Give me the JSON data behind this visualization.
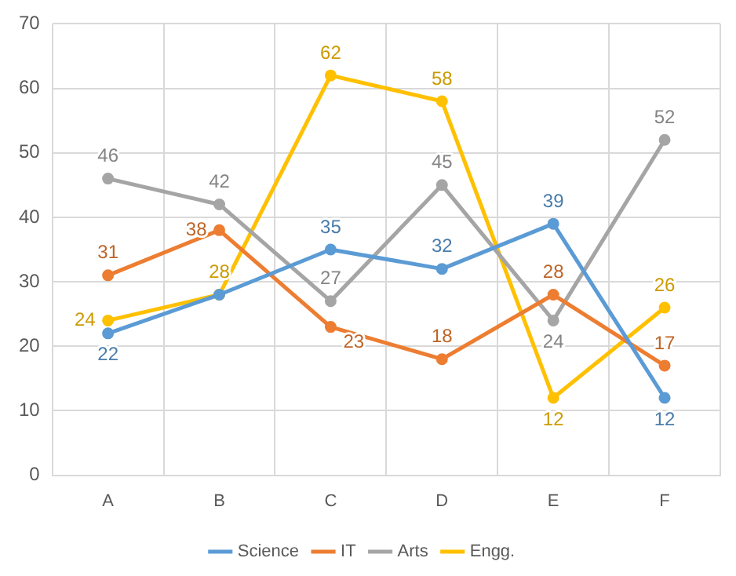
{
  "chart_data": {
    "type": "line",
    "categories": [
      "A",
      "B",
      "C",
      "D",
      "E",
      "F"
    ],
    "series": [
      {
        "name": "Science",
        "color": "#5b9bd5",
        "values": [
          22,
          28,
          35,
          32,
          39,
          12
        ],
        "value_labels": [
          "22",
          null,
          "35",
          "32",
          "39",
          "12"
        ]
      },
      {
        "name": "IT",
        "color": "#ed7d31",
        "values": [
          31,
          38,
          23,
          18,
          28,
          17
        ],
        "value_labels": [
          "31",
          "38",
          "23",
          "18",
          "28",
          "17"
        ]
      },
      {
        "name": "Arts",
        "color": "#a5a5a5",
        "values": [
          46,
          42,
          27,
          45,
          24,
          52
        ],
        "value_labels": [
          "46",
          "42",
          "27",
          "45",
          "24",
          "52"
        ]
      },
      {
        "name": "Engg.",
        "color": "#ffc000",
        "values": [
          24,
          28,
          62,
          58,
          12,
          26
        ],
        "value_labels": [
          "24",
          "28",
          "62",
          "58",
          "12",
          "26"
        ]
      }
    ],
    "ylim": [
      0,
      70
    ],
    "yticks": [
      0,
      10,
      20,
      30,
      40,
      50,
      60,
      70
    ],
    "grid": true,
    "legend": "bottom",
    "marker": "circle",
    "line_style": "solid"
  }
}
